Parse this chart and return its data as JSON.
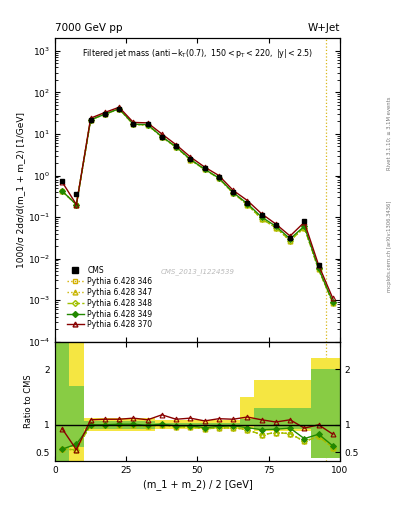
{
  "title_left": "7000 GeV pp",
  "title_right": "W+Jet",
  "plot_title": "Filtered jet mass",
  "plot_subtitle": "(anti-k_{T}(0.7), 150<p_{T}<220, |y|<2.5)",
  "xlabel": "(m_1 + m_2) / 2 [GeV]",
  "ylabel": "1000/σ 2dσ/d(m_1 + m_2) [1/GeV]",
  "watermark": "CMS_2013_I1224539",
  "right_label": "Rivet 3.1.10; ≥ 3.1M events",
  "arxiv_label": "mcplots.cern.ch [arXiv:1306.3436]",
  "xlim": [
    0,
    100
  ],
  "ylim_main": [
    0.0001,
    2000
  ],
  "ylim_ratio": [
    0.35,
    2.5
  ],
  "xbins": [
    0,
    5,
    10,
    15,
    20,
    25,
    30,
    35,
    40,
    45,
    50,
    55,
    60,
    65,
    70,
    75,
    80,
    85,
    90,
    95,
    100
  ],
  "cms_x": [
    2.5,
    7.5,
    12.5,
    17.5,
    22.5,
    27.5,
    32.5,
    37.5,
    42.5,
    47.5,
    52.5,
    57.5,
    62.5,
    67.5,
    72.5,
    77.5,
    82.5,
    87.5,
    92.5
  ],
  "cms_y": [
    0.75,
    0.35,
    22.0,
    30.0,
    40.0,
    17.0,
    17.0,
    8.5,
    5.0,
    2.5,
    1.5,
    0.9,
    0.4,
    0.22,
    0.11,
    0.065,
    0.032,
    0.08,
    0.007
  ],
  "py346_x": [
    2.5,
    7.5,
    12.5,
    17.5,
    22.5,
    27.5,
    32.5,
    37.5,
    42.5,
    47.5,
    52.5,
    57.5,
    62.5,
    67.5,
    72.5,
    77.5,
    82.5,
    87.5,
    92.5,
    97.5
  ],
  "py346_y": [
    0.42,
    0.2,
    22.0,
    30.0,
    40.0,
    17.0,
    16.5,
    8.5,
    4.8,
    2.4,
    1.4,
    0.85,
    0.38,
    0.2,
    0.09,
    0.056,
    0.027,
    0.056,
    0.0055,
    0.00085
  ],
  "py347_x": [
    2.5,
    7.5,
    12.5,
    17.5,
    22.5,
    27.5,
    32.5,
    37.5,
    42.5,
    47.5,
    52.5,
    57.5,
    62.5,
    67.5,
    72.5,
    77.5,
    82.5,
    87.5,
    92.5,
    97.5
  ],
  "py347_y": [
    0.42,
    0.2,
    22.0,
    30.0,
    40.0,
    17.0,
    16.5,
    8.5,
    4.8,
    2.4,
    1.4,
    0.85,
    0.38,
    0.2,
    0.09,
    0.056,
    0.027,
    0.056,
    0.0055,
    0.00085
  ],
  "py348_x": [
    2.5,
    7.5,
    12.5,
    17.5,
    22.5,
    27.5,
    32.5,
    37.5,
    42.5,
    47.5,
    52.5,
    57.5,
    62.5,
    67.5,
    72.5,
    77.5,
    82.5,
    87.5,
    92.5,
    97.5
  ],
  "py348_y": [
    0.42,
    0.2,
    22.0,
    30.0,
    40.0,
    17.0,
    16.5,
    8.5,
    4.8,
    2.4,
    1.4,
    0.85,
    0.38,
    0.2,
    0.09,
    0.056,
    0.027,
    0.056,
    0.0055,
    0.00085
  ],
  "py349_x": [
    2.5,
    7.5,
    12.5,
    17.5,
    22.5,
    27.5,
    32.5,
    37.5,
    42.5,
    47.5,
    52.5,
    57.5,
    62.5,
    67.5,
    72.5,
    77.5,
    82.5,
    87.5,
    92.5,
    97.5
  ],
  "py349_y": [
    0.42,
    0.2,
    22.0,
    30.0,
    40.5,
    17.2,
    16.8,
    8.6,
    4.9,
    2.45,
    1.42,
    0.87,
    0.39,
    0.21,
    0.1,
    0.06,
    0.03,
    0.06,
    0.0058,
    0.0009
  ],
  "py370_x": [
    2.5,
    7.5,
    12.5,
    17.5,
    22.5,
    27.5,
    32.5,
    37.5,
    42.5,
    47.5,
    52.5,
    57.5,
    62.5,
    67.5,
    72.5,
    77.5,
    82.5,
    87.5,
    92.5,
    97.5
  ],
  "py370_y": [
    0.7,
    0.2,
    24.0,
    33.0,
    44.0,
    19.0,
    18.5,
    10.0,
    5.5,
    2.8,
    1.6,
    1.0,
    0.44,
    0.25,
    0.12,
    0.068,
    0.035,
    0.075,
    0.007,
    0.0011
  ],
  "ratio346_x": [
    2.5,
    7.5,
    12.5,
    17.5,
    22.5,
    27.5,
    32.5,
    37.5,
    42.5,
    47.5,
    52.5,
    57.5,
    62.5,
    67.5,
    72.5,
    77.5,
    82.5,
    87.5,
    92.5,
    97.5
  ],
  "ratio346_y": [
    0.56,
    0.55,
    1.0,
    1.0,
    1.0,
    1.0,
    0.97,
    1.0,
    0.96,
    0.96,
    0.93,
    0.94,
    0.95,
    0.91,
    0.82,
    0.86,
    0.84,
    0.7,
    0.79,
    0.59
  ],
  "ratio347_x": [
    2.5,
    7.5,
    12.5,
    17.5,
    22.5,
    27.5,
    32.5,
    37.5,
    42.5,
    47.5,
    52.5,
    57.5,
    62.5,
    67.5,
    72.5,
    77.5,
    82.5,
    87.5,
    92.5,
    97.5
  ],
  "ratio347_y": [
    0.56,
    0.55,
    1.0,
    1.0,
    1.0,
    1.0,
    0.97,
    1.0,
    0.96,
    0.96,
    0.93,
    0.94,
    0.95,
    0.91,
    0.82,
    0.86,
    0.84,
    0.7,
    0.79,
    0.59
  ],
  "ratio348_x": [
    2.5,
    7.5,
    12.5,
    17.5,
    22.5,
    27.5,
    32.5,
    37.5,
    42.5,
    47.5,
    52.5,
    57.5,
    62.5,
    67.5,
    72.5,
    77.5,
    82.5,
    87.5,
    92.5,
    97.5
  ],
  "ratio348_y": [
    0.56,
    0.55,
    1.0,
    1.0,
    1.0,
    1.0,
    0.97,
    1.0,
    0.96,
    0.96,
    0.93,
    0.94,
    0.95,
    0.91,
    0.82,
    0.86,
    0.84,
    0.7,
    0.79,
    0.59
  ],
  "ratio349_x": [
    2.5,
    7.5,
    12.5,
    17.5,
    22.5,
    27.5,
    32.5,
    37.5,
    42.5,
    47.5,
    52.5,
    57.5,
    62.5,
    67.5,
    72.5,
    77.5,
    82.5,
    87.5,
    92.5,
    97.5
  ],
  "ratio349_y": [
    0.56,
    0.65,
    1.0,
    1.0,
    1.01,
    1.01,
    0.99,
    1.01,
    0.98,
    0.98,
    0.95,
    0.97,
    0.98,
    0.95,
    0.91,
    0.92,
    0.94,
    0.75,
    0.83,
    0.62
  ],
  "ratio370_x": [
    2.5,
    7.5,
    12.5,
    17.5,
    22.5,
    27.5,
    32.5,
    37.5,
    42.5,
    47.5,
    52.5,
    57.5,
    62.5,
    67.5,
    72.5,
    77.5,
    82.5,
    87.5,
    92.5,
    97.5
  ],
  "ratio370_y": [
    0.93,
    0.55,
    1.09,
    1.1,
    1.1,
    1.12,
    1.09,
    1.18,
    1.1,
    1.12,
    1.07,
    1.11,
    1.1,
    1.14,
    1.09,
    1.05,
    1.09,
    0.94,
    1.0,
    0.83
  ],
  "band_yellow_lo": [
    0.35,
    0.35,
    0.88,
    0.88,
    0.88,
    0.88,
    0.88,
    0.93,
    0.93,
    0.93,
    0.93,
    0.93,
    0.93,
    0.93,
    0.88,
    0.88,
    0.88,
    0.88,
    0.5,
    0.5
  ],
  "band_yellow_hi": [
    2.5,
    2.5,
    1.12,
    1.12,
    1.12,
    1.12,
    1.12,
    1.08,
    1.08,
    1.08,
    1.08,
    1.08,
    1.08,
    1.5,
    1.8,
    1.8,
    1.8,
    1.8,
    2.2,
    2.2
  ],
  "band_green_lo": [
    0.35,
    0.6,
    0.93,
    0.93,
    0.93,
    0.93,
    0.93,
    0.97,
    0.97,
    0.97,
    0.97,
    0.97,
    0.97,
    0.97,
    0.93,
    0.93,
    0.93,
    0.93,
    0.4,
    0.4
  ],
  "band_green_hi": [
    2.5,
    1.7,
    1.07,
    1.07,
    1.07,
    1.07,
    1.07,
    1.04,
    1.04,
    1.04,
    1.04,
    1.04,
    1.04,
    1.1,
    1.3,
    1.3,
    1.3,
    1.3,
    2.0,
    2.0
  ],
  "color_346": "#d4b000",
  "color_347": "#c8b400",
  "color_348": "#a0c000",
  "color_349": "#228800",
  "color_370": "#880000",
  "color_cms": "#000000",
  "dotted_x": 95.0
}
